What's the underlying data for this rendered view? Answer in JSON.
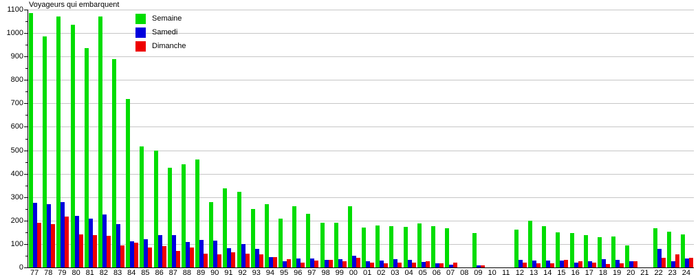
{
  "title": "Voyageurs qui embarquent",
  "colors": {
    "semaine": "#00DD00",
    "samedi": "#0000DD",
    "dimanche": "#EE0000",
    "grid": "#c6c6c6",
    "axis": "#000000"
  },
  "legend": {
    "items": [
      {
        "label": "Semaine",
        "color_key": "semaine"
      },
      {
        "label": "Samedi",
        "color_key": "samedi"
      },
      {
        "label": "Dimanche",
        "color_key": "dimanche"
      }
    ]
  },
  "y_axis": {
    "tick_labels": [
      "0",
      "100",
      "200",
      "300",
      "400",
      "500",
      "600",
      "700",
      "800",
      "900",
      "1000",
      "1100"
    ]
  },
  "chart_data": {
    "type": "bar",
    "title": "Voyageurs qui embarquent",
    "xlabel": "",
    "ylabel": "",
    "ylim": [
      0,
      1100
    ],
    "ytick_step": 100,
    "grid": true,
    "legend_position": "top-left-inside",
    "categories": [
      "77",
      "78",
      "79",
      "80",
      "81",
      "82",
      "83",
      "84",
      "85",
      "86",
      "87",
      "88",
      "89",
      "90",
      "91",
      "92",
      "93",
      "94",
      "95",
      "96",
      "97",
      "98",
      "99",
      "00",
      "01",
      "02",
      "03",
      "04",
      "05",
      "06",
      "07",
      "08",
      "09",
      "10",
      "11",
      "12",
      "13",
      "14",
      "15",
      "16",
      "17",
      "18",
      "19",
      "20",
      "21",
      "22",
      "23",
      "24"
    ],
    "series": [
      {
        "name": "Semaine",
        "color": "#00DD00",
        "values": [
          1085,
          985,
          1070,
          1035,
          935,
          1070,
          890,
          720,
          515,
          500,
          425,
          440,
          460,
          278,
          338,
          322,
          250,
          270,
          207,
          262,
          230,
          190,
          190,
          260,
          170,
          180,
          175,
          173,
          188,
          175,
          168,
          0,
          148,
          0,
          0,
          162,
          200,
          175,
          150,
          147,
          138,
          128,
          133,
          93,
          0,
          168,
          152,
          140
        ]
      },
      {
        "name": "Samedi",
        "color": "#0000DD",
        "values": [
          275,
          270,
          280,
          221,
          208,
          227,
          185,
          112,
          120,
          139,
          137,
          109,
          117,
          113,
          83,
          100,
          78,
          43,
          27,
          37,
          39,
          33,
          35,
          51,
          25,
          28,
          35,
          33,
          24,
          18,
          12,
          0,
          10,
          0,
          0,
          33,
          28,
          30,
          30,
          21,
          27,
          34,
          33,
          27,
          0,
          80,
          26,
          39
        ]
      },
      {
        "name": "Dimanche",
        "color": "#EE0000",
        "values": [
          190,
          186,
          217,
          142,
          137,
          134,
          95,
          105,
          85,
          91,
          69,
          86,
          59,
          56,
          66,
          60,
          55,
          45,
          36,
          22,
          30,
          31,
          26,
          40,
          20,
          19,
          22,
          22,
          26,
          18,
          21,
          0,
          10,
          0,
          0,
          20,
          17,
          19,
          33,
          27,
          21,
          15,
          18,
          26,
          0,
          42,
          55,
          40
        ]
      }
    ]
  }
}
